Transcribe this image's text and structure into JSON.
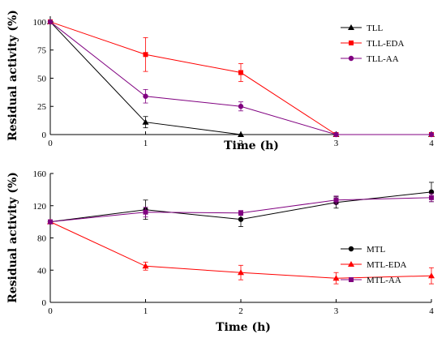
{
  "chart_data": [
    {
      "type": "line",
      "ylabel": "Residual activity (%)",
      "xlabel": "Time (h)",
      "x": [
        0,
        1,
        2,
        3,
        4
      ],
      "xlim": [
        0,
        4
      ],
      "ylim": [
        0,
        105
      ],
      "yticks": [
        0,
        25,
        50,
        75,
        100
      ],
      "xticks": [
        0,
        1,
        2,
        3,
        4
      ],
      "legend_position": "top-right",
      "grid": false,
      "series": [
        {
          "name": "TLL",
          "color": "#000000",
          "marker": "triangle",
          "values": [
            100,
            11,
            0,
            0,
            0
          ],
          "errors": [
            0,
            5,
            0,
            0,
            0
          ]
        },
        {
          "name": "TLL-EDA",
          "color": "#ff0000",
          "marker": "square",
          "values": [
            100,
            71,
            55,
            0,
            0
          ],
          "errors": [
            0,
            15,
            8,
            0,
            0
          ]
        },
        {
          "name": "TLL-AA",
          "color": "#800080",
          "marker": "circle",
          "values": [
            100,
            34,
            25,
            0,
            0
          ],
          "errors": [
            0,
            6,
            4,
            0,
            0
          ]
        }
      ]
    },
    {
      "type": "line",
      "ylabel": "Residual activity (%)",
      "xlabel": "Time (h)",
      "x": [
        0,
        1,
        2,
        3,
        4
      ],
      "xlim": [
        0,
        4
      ],
      "ylim": [
        0,
        160
      ],
      "yticks": [
        0,
        40,
        80,
        120,
        160
      ],
      "xticks": [
        0,
        1,
        2,
        3,
        4
      ],
      "legend_position": "center-right",
      "grid": false,
      "series": [
        {
          "name": "MTL",
          "color": "#000000",
          "marker": "circle",
          "values": [
            100,
            115,
            103,
            124,
            137
          ],
          "errors": [
            0,
            12,
            9,
            7,
            12
          ]
        },
        {
          "name": "MTL-EDA",
          "color": "#ff0000",
          "marker": "triangle",
          "values": [
            100,
            45,
            37,
            30,
            33
          ],
          "errors": [
            0,
            5,
            9,
            7,
            10
          ]
        },
        {
          "name": "MTL-AA",
          "color": "#800080",
          "marker": "square",
          "values": [
            100,
            112,
            111,
            127,
            130
          ],
          "errors": [
            0,
            6,
            3,
            5,
            5
          ]
        }
      ]
    }
  ]
}
